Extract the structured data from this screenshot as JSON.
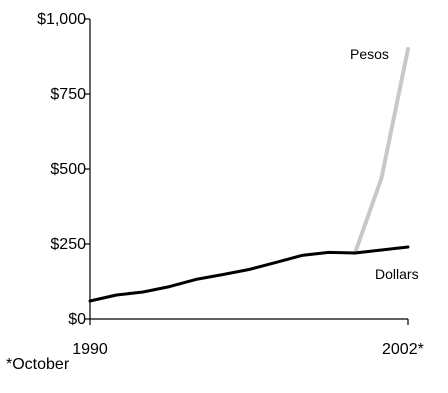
{
  "chart_data": {
    "type": "line",
    "x": [
      1990,
      1991,
      1992,
      1993,
      1994,
      1995,
      1996,
      1997,
      1998,
      1999,
      2000,
      2001,
      2002
    ],
    "series": [
      {
        "name": "Pesos",
        "color": "#c8c8c8",
        "values": [
          null,
          null,
          null,
          null,
          null,
          null,
          null,
          null,
          null,
          null,
          220,
          470,
          900
        ]
      },
      {
        "name": "Dollars",
        "color": "#000000",
        "values": [
          60,
          80,
          90,
          108,
          132,
          148,
          165,
          188,
          212,
          222,
          220,
          230,
          240
        ]
      }
    ],
    "ylim": [
      0,
      1000
    ],
    "yticks": [
      0,
      250,
      500,
      750,
      1000
    ],
    "ytick_labels": [
      "$0",
      "$250",
      "$500",
      "$750",
      "$1,000"
    ],
    "xticks": [
      1990,
      2002
    ],
    "xtick_labels": [
      "1990",
      "2002*"
    ],
    "footnote": "*October",
    "grid": false,
    "legend": "inline labels near line ends"
  }
}
